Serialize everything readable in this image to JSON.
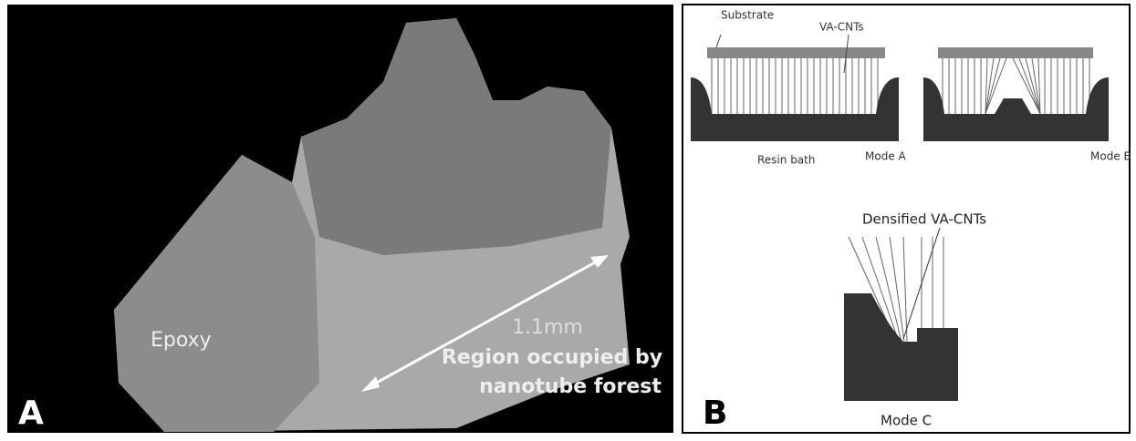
{
  "panel_a": {
    "label": "A",
    "epoxy": "Epoxy",
    "scale": "1.1mm",
    "region": [
      "Region occupied by",
      "nanotube forest"
    ]
  },
  "panel_b": {
    "label": "B",
    "mode_a": {
      "substrate": "Substrate",
      "vacnts": "VA-CNTs",
      "resin_bath": "Resin bath",
      "mode": "Mode A"
    },
    "mode_b": {
      "mode": "Mode B"
    },
    "mode_c": {
      "annotation": "Densified VA-CNTs",
      "mode": "Mode C"
    }
  }
}
